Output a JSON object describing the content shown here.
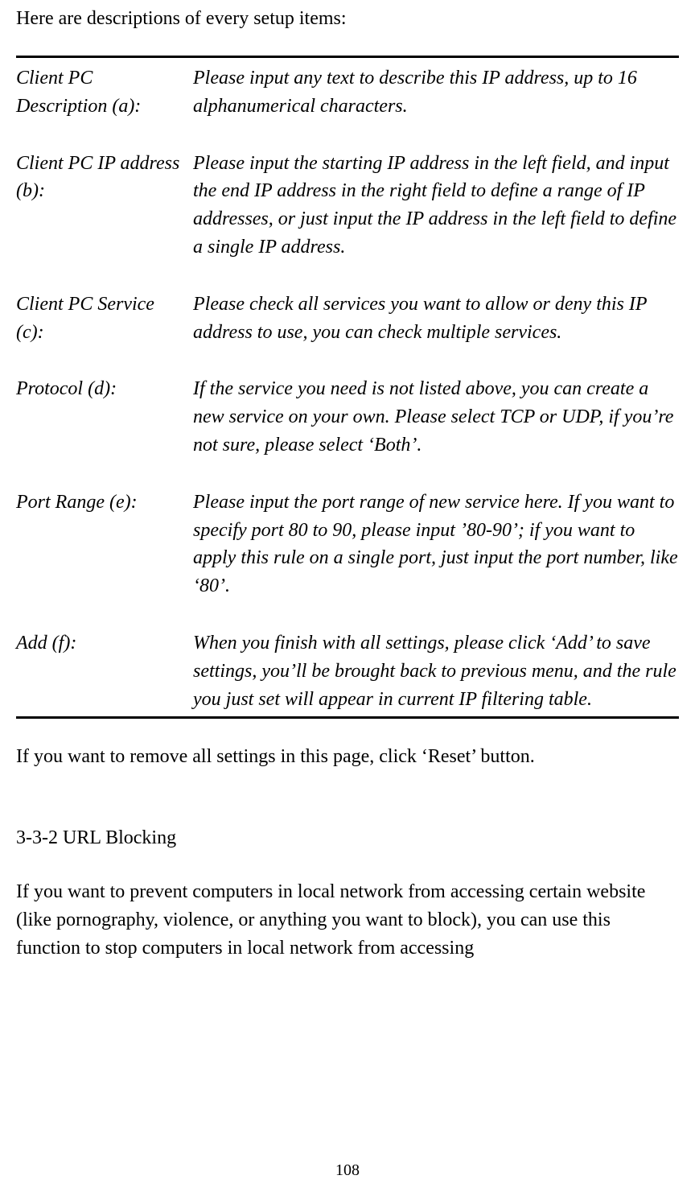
{
  "intro": "Here are descriptions of every setup items:",
  "rows": [
    {
      "label": "Client PC Description (a):",
      "desc": "Please input any text to describe this IP address, up to 16 alphanumerical characters."
    },
    {
      "label": "Client PC IP address (b):",
      "desc": "Please input the starting IP address in the left field, and input the end IP address in the right field to define a range of IP addresses, or just input the IP address in the left field to define a single IP address."
    },
    {
      "label": "Client PC Service (c):",
      "desc": "Please check all services you want to allow or deny this IP address to use, you can check multiple services."
    },
    {
      "label": "Protocol (d):",
      "desc": "If the service you need is not listed above, you can create a new service on your own. Please select TCP or UDP, if you’re not sure, please select ‘Both’."
    },
    {
      "label": "Port Range (e):",
      "desc": "Please input the port range of new service here. If you want to specify port 80 to 90, please input ’80-90’; if you want to apply this rule on a single port, just input the port number, like ‘80’."
    },
    {
      "label": "Add (f):",
      "desc": "When you finish with all settings, please click ‘Add’ to save settings, you’ll be brought back to previous menu, and the rule you just set will appear in current IP filtering table."
    }
  ],
  "reset_note": "If you want to remove all settings in this page, click ‘Reset’ button.",
  "heading": "3-3-2 URL Blocking",
  "body_para": "If you want to prevent computers in local network from accessing certain website (like pornography, violence, or anything you want to block), you can use this function to stop computers in local network from accessing",
  "page_number": "108"
}
